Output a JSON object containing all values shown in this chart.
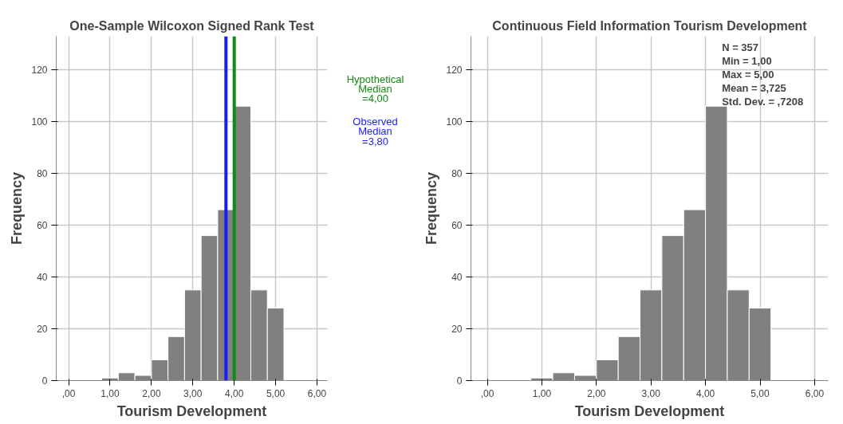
{
  "chart_data": [
    {
      "type": "histogram",
      "title": "One-Sample Wilcoxon Signed Rank Test",
      "xlabel": "Tourism Development",
      "ylabel": "Frequency",
      "bins": [
        0,
        0.4,
        0.8,
        1.2,
        1.6,
        2.0,
        2.4,
        2.8,
        3.2,
        3.6,
        4.0,
        4.4,
        4.8,
        5.2,
        5.6,
        6.0
      ],
      "values": [
        0,
        0,
        1,
        3,
        2,
        8,
        17,
        35,
        56,
        66,
        106,
        35,
        28,
        0,
        0
      ],
      "color": "#808080",
      "xlim": [
        -0.3,
        6.25
      ],
      "ylim": [
        0,
        133
      ],
      "xticks": [
        {
          "value": 0,
          "label": ",00"
        },
        {
          "value": 1,
          "label": "1,00"
        },
        {
          "value": 2,
          "label": "2,00"
        },
        {
          "value": 3,
          "label": "3,00"
        },
        {
          "value": 4,
          "label": "4,00"
        },
        {
          "value": 5,
          "label": "5,00"
        },
        {
          "value": 6,
          "label": "6,00"
        }
      ],
      "yticks": [
        0,
        20,
        40,
        60,
        80,
        100,
        120
      ],
      "grid": true,
      "ref_lines": [
        {
          "axis": "x",
          "value": 4.0,
          "label": "Hypothetical Median =4,00",
          "color": "#138a13"
        },
        {
          "axis": "x",
          "value": 3.8,
          "label": "Observed Median =3,80",
          "color": "#1a1aff"
        }
      ]
    },
    {
      "type": "histogram",
      "title": "Continuous Field Information Tourism Development",
      "xlabel": "Tourism Development",
      "ylabel": "Frequency",
      "bins": [
        0,
        0.4,
        0.8,
        1.2,
        1.6,
        2.0,
        2.4,
        2.8,
        3.2,
        3.6,
        4.0,
        4.4,
        4.8,
        5.2,
        5.6,
        6.0
      ],
      "values": [
        0,
        0,
        1,
        3,
        2,
        8,
        17,
        35,
        56,
        66,
        106,
        35,
        28,
        0,
        0
      ],
      "color": "#808080",
      "xlim": [
        -0.3,
        6.25
      ],
      "ylim": [
        0,
        133
      ],
      "xticks": [
        {
          "value": 0,
          "label": ",00"
        },
        {
          "value": 1,
          "label": "1,00"
        },
        {
          "value": 2,
          "label": "2,00"
        },
        {
          "value": 3,
          "label": "3,00"
        },
        {
          "value": 4,
          "label": "4,00"
        },
        {
          "value": 5,
          "label": "5,00"
        },
        {
          "value": 6,
          "label": "6,00"
        }
      ],
      "yticks": [
        0,
        20,
        40,
        60,
        80,
        100,
        120
      ],
      "grid": true,
      "annotations": [
        "N = 357",
        "Min = 1,00",
        "Max = 5,00",
        "Mean = 3,725",
        "Std. Dev. = ,7208"
      ]
    }
  ]
}
